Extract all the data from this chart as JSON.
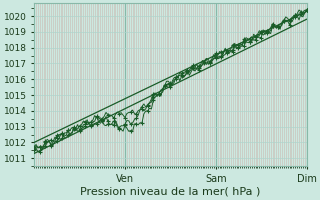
{
  "xlabel": "Pression niveau de la mer( hPa )",
  "bg_color": "#cce8e0",
  "plot_bg_color": "#cce8e0",
  "grid_color_minor": "#b0d4cc",
  "grid_color_major": "#88b8a8",
  "line_color": "#1a5c28",
  "ylim": [
    1010.5,
    1020.8
  ],
  "xlim": [
    0,
    144
  ],
  "yticks": [
    1011,
    1012,
    1013,
    1014,
    1015,
    1016,
    1017,
    1018,
    1019,
    1020
  ],
  "xtick_positions": [
    48,
    96,
    144
  ],
  "xtick_labels": [
    "Ven",
    "Sam",
    "Dim"
  ],
  "n_points": 145
}
